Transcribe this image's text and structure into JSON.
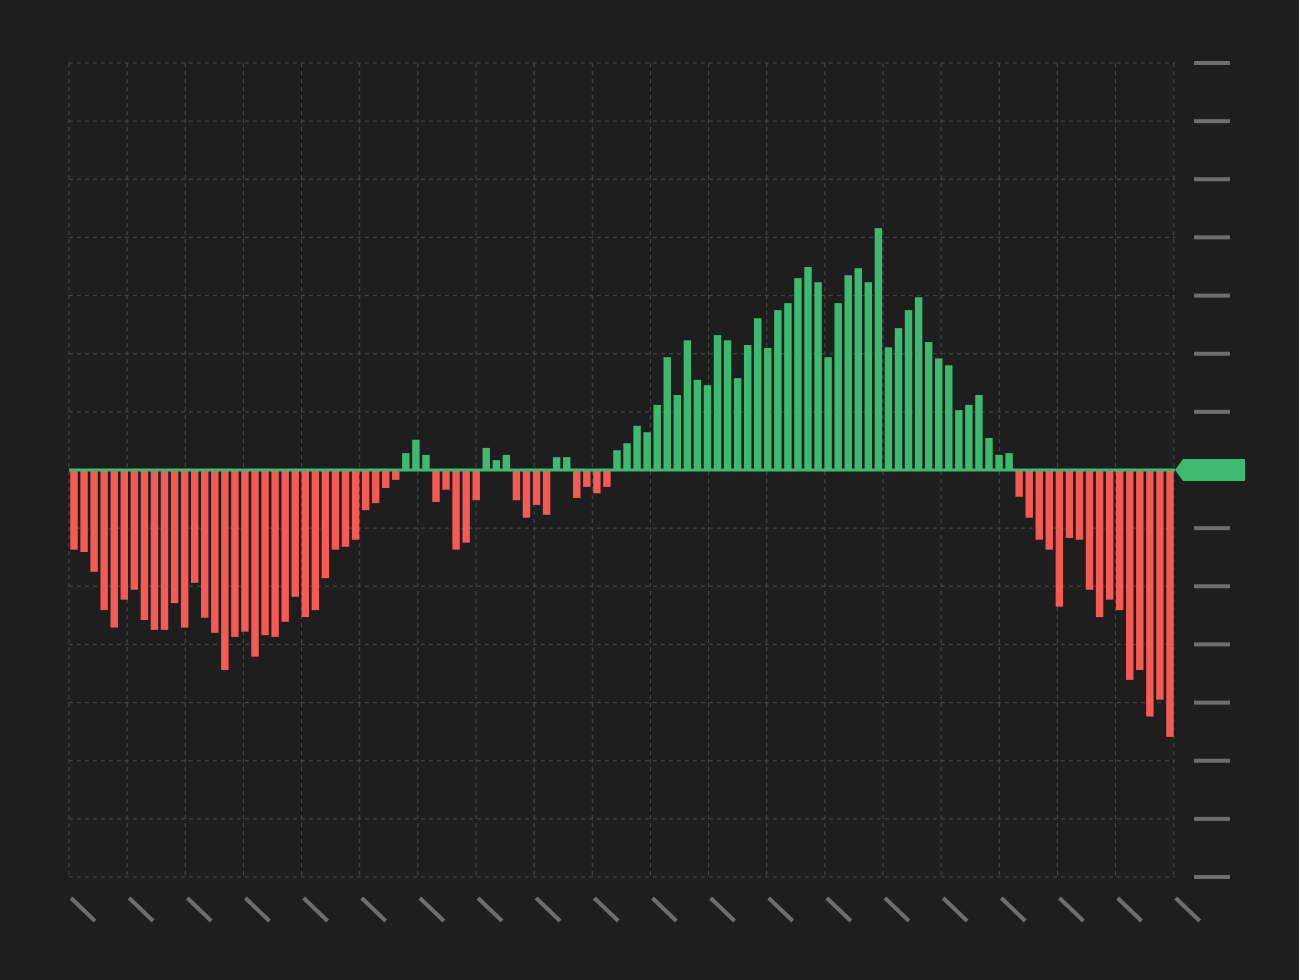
{
  "chart_data": {
    "type": "bar",
    "values": [
      -1.37,
      -1.41,
      -1.75,
      -2.41,
      -2.71,
      -2.23,
      -2.06,
      -2.58,
      -2.75,
      -2.75,
      -2.29,
      -2.71,
      -1.94,
      -2.54,
      -2.8,
      -3.44,
      -2.87,
      -2.78,
      -3.21,
      -2.84,
      -2.87,
      -2.61,
      -2.18,
      -2.53,
      -2.41,
      -1.86,
      -1.37,
      -1.32,
      -1.2,
      -0.69,
      -0.57,
      -0.31,
      -0.17,
      0.29,
      0.52,
      0.26,
      -0.55,
      -0.34,
      -1.37,
      -1.25,
      -0.52,
      0.38,
      0.17,
      0.26,
      -0.52,
      -0.82,
      -0.6,
      -0.77,
      0.22,
      0.22,
      -0.48,
      -0.29,
      -0.4,
      -0.29,
      0.34,
      0.46,
      0.76,
      0.65,
      1.12,
      1.94,
      1.29,
      2.23,
      1.55,
      1.46,
      2.32,
      2.23,
      1.58,
      2.15,
      2.61,
      2.1,
      2.75,
      2.87,
      3.3,
      3.49,
      3.23,
      1.94,
      2.87,
      3.35,
      3.47,
      3.23,
      4.16,
      2.11,
      2.44,
      2.75,
      2.97,
      2.2,
      1.92,
      1.8,
      1.03,
      1.12,
      1.29,
      0.55,
      0.26,
      0.29,
      -0.46,
      -0.82,
      -1.2,
      -1.37,
      -2.35,
      -1.17,
      -1.2,
      -2.06,
      -2.53,
      -2.23,
      -2.41,
      -3.61,
      -3.44,
      -4.24,
      -3.95,
      -4.59
    ],
    "color_positive": "#3dba6f",
    "color_negative": "#f55a55",
    "ylim": [
      -7,
      7
    ],
    "yticks": [
      -7,
      -6,
      -5,
      -4,
      -3,
      -2,
      -1,
      0,
      1,
      2,
      3,
      4,
      5,
      6,
      7
    ],
    "grid": true
  }
}
